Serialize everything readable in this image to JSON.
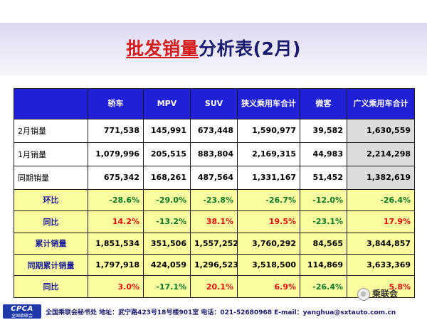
{
  "title": {
    "part1": "批发销量",
    "part2": "分析表(2月)"
  },
  "table": {
    "headers": [
      "",
      "轿车",
      "MPV",
      "SUV",
      "狭义乘用车合计",
      "微客",
      "广义乘用车合计"
    ],
    "rows": [
      {
        "label": "2月销量",
        "style": "white",
        "values": [
          "771,538",
          "145,991",
          "673,448",
          "1,590,977",
          "39,582",
          "1,630,559"
        ]
      },
      {
        "label": "1月销量",
        "style": "white",
        "values": [
          "1,079,996",
          "205,515",
          "883,804",
          "2,169,315",
          "44,983",
          "2,214,298"
        ]
      },
      {
        "label": "同期销量",
        "style": "white",
        "values": [
          "675,342",
          "168,261",
          "487,564",
          "1,331,167",
          "51,452",
          "1,382,619"
        ]
      },
      {
        "label": "环比",
        "style": "yellow",
        "values": [
          "-28.6%",
          "-29.0%",
          "-23.8%",
          "-26.7%",
          "-12.0%",
          "-26.4%"
        ]
      },
      {
        "label": "同比",
        "style": "yellow",
        "values": [
          "14.2%",
          "-13.2%",
          "38.1%",
          "19.5%",
          "-23.1%",
          "17.9%"
        ]
      },
      {
        "label": "累计销量",
        "style": "yellow",
        "values": [
          "1,851,534",
          "351,506",
          "1,557,252",
          "3,760,292",
          "84,565",
          "3,844,857"
        ]
      },
      {
        "label": "同期累计销量",
        "style": "yellow",
        "values": [
          "1,797,918",
          "424,059",
          "1,296,523",
          "3,518,500",
          "114,869",
          "3,633,369"
        ]
      },
      {
        "label": "同比",
        "style": "yellow",
        "values": [
          "3.0%",
          "-17.1%",
          "20.1%",
          "6.9%",
          "-26.4%",
          "5.8%"
        ]
      }
    ]
  },
  "footer": {
    "logo_top": "CPCA",
    "logo_bottom": "全国乘联会",
    "text": "全国乘联会秘书处  地址：武宁路423号18号楼901室  电话：021-52680968  E-mail：yanghua@sxtauto.com.cn"
  },
  "watermark": "乘联会",
  "colors": {
    "header_bg": "#2020d8",
    "yellow_row": "#fbfba0",
    "total_col": "#dcdcdc",
    "positive": "#0a7a2a",
    "negative": "#e01010",
    "title_red": "#d41c1c",
    "title_navy": "#1a1a6e"
  }
}
